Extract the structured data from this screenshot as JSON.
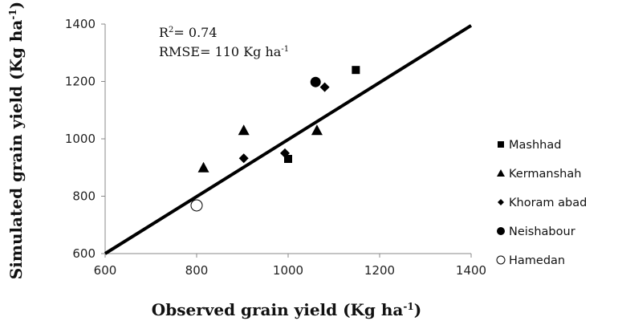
{
  "chart_data": {
    "type": "scatter",
    "xlim": [
      600,
      1400
    ],
    "ylim": [
      600,
      1400
    ],
    "xticks": [
      600,
      800,
      1000,
      1200,
      1400
    ],
    "yticks": [
      600,
      800,
      1000,
      1200,
      1400
    ],
    "xlabel": {
      "main": "Observed grain yield (Kg ha",
      "sup": "-1",
      "tail": ")"
    },
    "ylabel": {
      "main": "Simulated grain yield (Kg ha",
      "sup": "-1",
      "tail": ")"
    },
    "grid": false,
    "legend_position": "right",
    "annotation": {
      "r2": {
        "pre": "R",
        "sup": "2",
        "post": "= 0.74"
      },
      "rmse": {
        "pre": "RMSE= 110 Kg ha",
        "sup": "-1"
      }
    },
    "reference_line": {
      "x": [
        600,
        1400
      ],
      "y": [
        600,
        1395
      ]
    },
    "series": [
      {
        "name": "Mashhad",
        "marker": "square",
        "points": [
          [
            1148,
            1240
          ],
          [
            1000,
            930
          ]
        ]
      },
      {
        "name": "Kermanshah",
        "marker": "triangle",
        "points": [
          [
            815,
            900
          ],
          [
            903,
            1030
          ],
          [
            1063,
            1030
          ]
        ]
      },
      {
        "name": "Khoram abad",
        "marker": "diamond",
        "points": [
          [
            903,
            932
          ],
          [
            993,
            950
          ],
          [
            1080,
            1180
          ]
        ]
      },
      {
        "name": "Neishabour",
        "marker": "circle",
        "points": [
          [
            1060,
            1198
          ]
        ]
      },
      {
        "name": "Hamedan",
        "marker": "open-circle",
        "points": [
          [
            800,
            768
          ]
        ]
      }
    ]
  }
}
